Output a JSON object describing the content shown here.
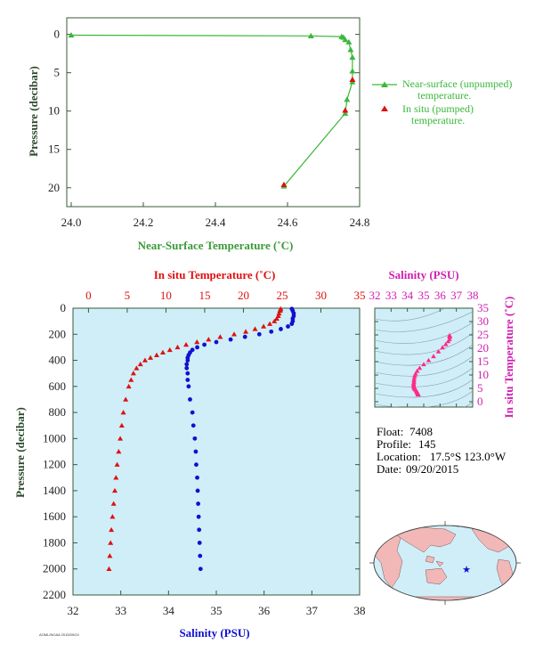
{
  "colors": {
    "green": "#3cb83c",
    "red": "#e01010",
    "blue": "#1010d0",
    "magenta": "#d020b0",
    "pink": "#ff2a8a",
    "panel_bg": "#cfeef8",
    "land": "#f2b8b8",
    "ocean": "#cfeef8",
    "axis_title_green": "#3a9a3a",
    "axis_title_dark": "#2e4a2e"
  },
  "info": {
    "float_label": "Float:",
    "float_value": "7408",
    "profile_label": "Profile:",
    "profile_value": "145",
    "location_label": "Location:",
    "location_value": "17.5°S  123.0°W",
    "date_label": "Date:",
    "date_value": "09/20/2015"
  },
  "footer_code": "AOML/NOAA 2015/09/24",
  "chart_data": [
    {
      "type": "line",
      "id": "near_surface",
      "xlabel": "Near-Surface Temperature (˚C)",
      "ylabel": "Pressure (decibar)",
      "xlim": [
        24.0,
        24.8
      ],
      "ylim": [
        22,
        -1
      ],
      "xticks": [
        24.0,
        24.2,
        24.4,
        24.6,
        24.8
      ],
      "xtick_labels": [
        "24.0",
        "24.2",
        "24.4",
        "24.6",
        "24.8"
      ],
      "yticks": [
        0,
        5,
        10,
        15,
        20
      ],
      "ytick_labels": [
        "0",
        "5",
        "10",
        "15",
        "20"
      ],
      "series": [
        {
          "name": "Near-surface (unpumped) temperature.",
          "marker": "triangle-up-green-line",
          "points": [
            [
              24.0,
              0.1
            ],
            [
              24.665,
              0.2
            ],
            [
              24.75,
              0.3
            ],
            [
              24.755,
              0.4
            ],
            [
              24.76,
              0.7
            ],
            [
              24.77,
              1.0
            ],
            [
              24.775,
              2.0
            ],
            [
              24.78,
              3.0
            ],
            [
              24.78,
              4.8
            ],
            [
              24.78,
              6.2
            ],
            [
              24.765,
              8.5
            ],
            [
              24.76,
              10.3
            ],
            [
              24.59,
              19.8
            ]
          ]
        },
        {
          "name": "In situ (pumped) temperature.",
          "marker": "triangle-up-red",
          "points": [
            [
              24.78,
              5.9
            ],
            [
              24.76,
              9.9
            ],
            [
              24.59,
              19.6
            ]
          ]
        }
      ],
      "legend": [
        {
          "line1": "Near-surface (unpumped)",
          "line2": "temperature."
        },
        {
          "line1": "In situ (pumped)",
          "line2": "temperature."
        }
      ]
    },
    {
      "type": "line",
      "id": "profile",
      "ylabel": "Pressure (decibar)",
      "ylim": [
        2200,
        0
      ],
      "yticks": [
        0,
        200,
        400,
        600,
        800,
        1000,
        1200,
        1400,
        1600,
        1800,
        2000,
        2200
      ],
      "ytick_labels": [
        "0",
        "200",
        "400",
        "600",
        "800",
        "1000",
        "1200",
        "1400",
        "1600",
        "1800",
        "2000",
        "2200"
      ],
      "temp_axis": {
        "label": "In situ Temperature (˚C)",
        "lim": [
          -2,
          35
        ],
        "ticks": [
          0,
          5,
          10,
          15,
          20,
          25,
          30,
          35
        ],
        "tick_labels": [
          "0",
          "5",
          "10",
          "15",
          "20",
          "25",
          "30",
          "35"
        ]
      },
      "sal_axis": {
        "label": "Salinity (PSU)",
        "lim": [
          32,
          38
        ],
        "ticks": [
          32,
          33,
          34,
          35,
          36,
          37,
          38
        ],
        "tick_labels": [
          "32",
          "33",
          "34",
          "35",
          "36",
          "37",
          "38"
        ]
      },
      "temperature": {
        "pressure": [
          5,
          20,
          40,
          60,
          80,
          100,
          120,
          140,
          160,
          180,
          200,
          220,
          240,
          260,
          280,
          300,
          320,
          340,
          360,
          380,
          400,
          430,
          460,
          500,
          550,
          600,
          700,
          800,
          900,
          1000,
          1100,
          1200,
          1300,
          1400,
          1500,
          1600,
          1700,
          1800,
          1900,
          2000
        ],
        "values": [
          24.8,
          24.7,
          24.6,
          24.5,
          24.3,
          24.0,
          23.4,
          22.6,
          21.5,
          20.3,
          18.8,
          17.0,
          15.5,
          14.0,
          12.6,
          11.5,
          10.5,
          9.6,
          8.8,
          8.0,
          7.3,
          6.7,
          6.2,
          5.8,
          5.5,
          5.2,
          4.8,
          4.5,
          4.3,
          4.1,
          3.9,
          3.7,
          3.55,
          3.4,
          3.25,
          3.1,
          2.95,
          2.85,
          2.75,
          2.65
        ]
      },
      "salinity": {
        "pressure": [
          5,
          20,
          40,
          60,
          80,
          100,
          120,
          140,
          160,
          180,
          200,
          220,
          240,
          260,
          280,
          300,
          320,
          340,
          360,
          380,
          400,
          430,
          460,
          500,
          550,
          600,
          700,
          800,
          900,
          1000,
          1100,
          1200,
          1300,
          1400,
          1500,
          1600,
          1700,
          1800,
          1900,
          2000
        ],
        "values": [
          36.58,
          36.6,
          36.62,
          36.62,
          36.6,
          36.6,
          36.58,
          36.5,
          36.35,
          36.15,
          35.9,
          35.6,
          35.3,
          35.0,
          34.75,
          34.6,
          34.5,
          34.45,
          34.42,
          34.4,
          34.4,
          34.38,
          34.38,
          34.4,
          34.4,
          34.42,
          34.45,
          34.5,
          34.52,
          34.55,
          34.57,
          34.58,
          34.6,
          34.61,
          34.62,
          34.63,
          34.64,
          34.65,
          34.66,
          34.67
        ]
      }
    },
    {
      "type": "scatter",
      "id": "ts_diagram",
      "title": "Salinity (PSU)",
      "ylabel": "In situ Temperature (˚C)",
      "xlim": [
        32,
        38
      ],
      "ylim": [
        -2,
        35
      ],
      "xticks": [
        32,
        33,
        34,
        35,
        36,
        37,
        38
      ],
      "xtick_labels": [
        "32",
        "33",
        "34",
        "35",
        "36",
        "37",
        "38"
      ],
      "yticks": [
        0,
        5,
        10,
        15,
        20,
        25,
        30,
        35
      ],
      "ytick_labels": [
        "0",
        "5",
        "10",
        "15",
        "20",
        "25",
        "30",
        "35"
      ],
      "points": [
        [
          36.58,
          24.8
        ],
        [
          36.6,
          24.6
        ],
        [
          36.6,
          24.3
        ],
        [
          36.58,
          23.4
        ],
        [
          36.5,
          22.6
        ],
        [
          36.35,
          21.5
        ],
        [
          36.15,
          20.3
        ],
        [
          35.9,
          18.8
        ],
        [
          35.6,
          17.0
        ],
        [
          35.3,
          15.5
        ],
        [
          35.0,
          14.0
        ],
        [
          34.75,
          12.6
        ],
        [
          34.6,
          11.5
        ],
        [
          34.5,
          10.5
        ],
        [
          34.45,
          9.6
        ],
        [
          34.42,
          8.8
        ],
        [
          34.4,
          8.0
        ],
        [
          34.4,
          7.3
        ],
        [
          34.38,
          6.7
        ],
        [
          34.38,
          6.2
        ],
        [
          34.4,
          5.8
        ],
        [
          34.4,
          5.5
        ],
        [
          34.42,
          5.2
        ],
        [
          34.45,
          4.8
        ],
        [
          34.5,
          4.5
        ],
        [
          34.55,
          4.1
        ],
        [
          34.58,
          3.7
        ],
        [
          34.61,
          3.4
        ],
        [
          34.63,
          3.1
        ],
        [
          34.65,
          2.85
        ],
        [
          34.67,
          2.65
        ]
      ]
    }
  ]
}
